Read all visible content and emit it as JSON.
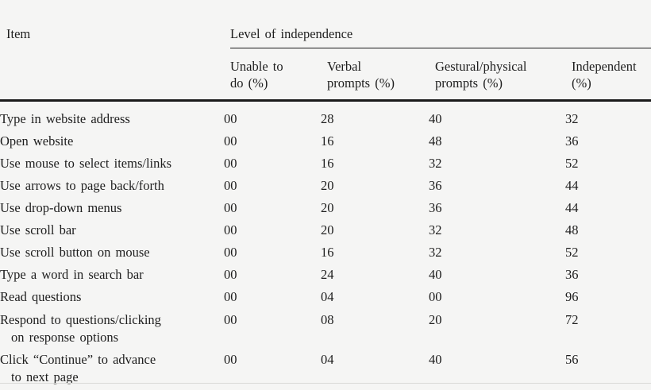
{
  "page": {
    "background": "#f5f5f4",
    "text_color": "#1e1e1e",
    "rule_color": "#1a1a1a"
  },
  "table": {
    "item_header": "Item",
    "group_header": "Level of independence",
    "columns": [
      {
        "line1": "Unable to",
        "line2": "do (%)"
      },
      {
        "line1": "Verbal",
        "line2": "prompts (%)"
      },
      {
        "line1": "Gestural/physical",
        "line2": "prompts (%)"
      },
      {
        "line1": "Independent",
        "line2": "(%)"
      }
    ],
    "rows": [
      {
        "item": "Type in website address",
        "item_line2": "",
        "values": [
          "00",
          "28",
          "40",
          "32"
        ]
      },
      {
        "item": "Open website",
        "item_line2": "",
        "values": [
          "00",
          "16",
          "48",
          "36"
        ]
      },
      {
        "item": "Use mouse to select items/links",
        "item_line2": "",
        "values": [
          "00",
          "16",
          "32",
          "52"
        ]
      },
      {
        "item": "Use arrows to page back/forth",
        "item_line2": "",
        "values": [
          "00",
          "20",
          "36",
          "44"
        ]
      },
      {
        "item": "Use drop-down menus",
        "item_line2": "",
        "values": [
          "00",
          "20",
          "36",
          "44"
        ]
      },
      {
        "item": "Use scroll bar",
        "item_line2": "",
        "values": [
          "00",
          "20",
          "32",
          "48"
        ]
      },
      {
        "item": "Use scroll button on mouse",
        "item_line2": "",
        "values": [
          "00",
          "16",
          "32",
          "52"
        ]
      },
      {
        "item": "Type a word in search bar",
        "item_line2": "",
        "values": [
          "00",
          "24",
          "40",
          "36"
        ]
      },
      {
        "item": "Read questions",
        "item_line2": "",
        "values": [
          "00",
          "04",
          "00",
          "96"
        ]
      },
      {
        "item": "Respond to questions/clicking",
        "item_line2": "on response options",
        "values": [
          "00",
          "08",
          "20",
          "72"
        ]
      },
      {
        "item": "Click “Continue” to advance",
        "item_line2": "to next page",
        "values": [
          "00",
          "04",
          "40",
          "56"
        ]
      }
    ]
  }
}
